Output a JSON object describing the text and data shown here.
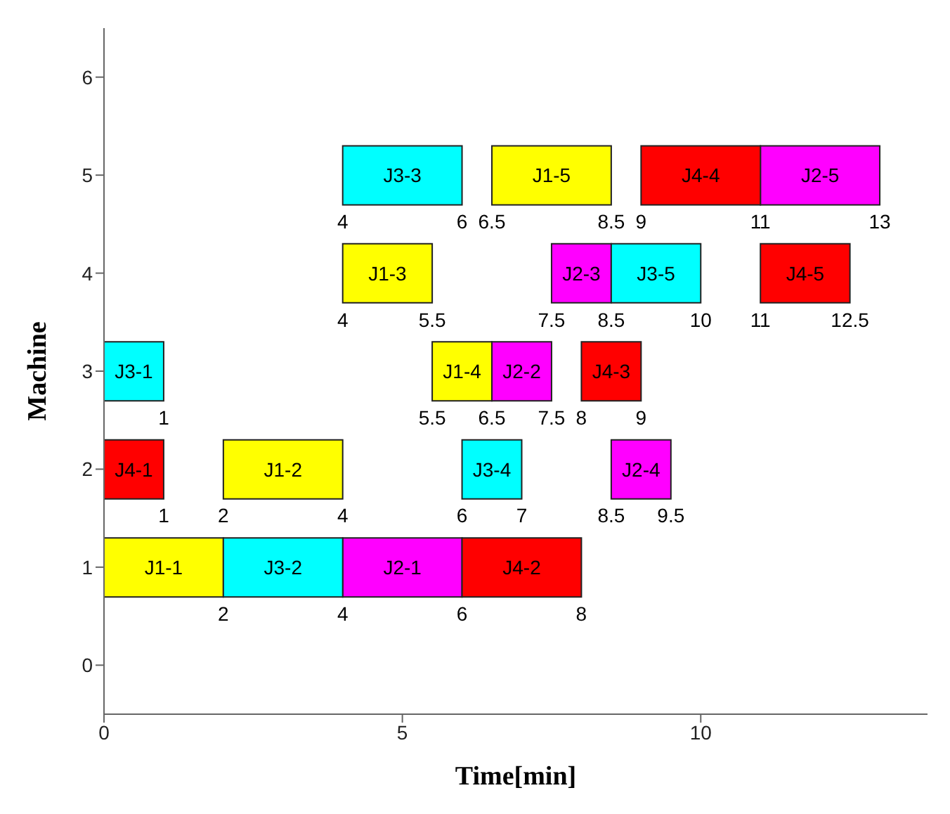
{
  "chart_data": {
    "type": "bar",
    "orientation": "horizontal",
    "xlabel": "Time[min]",
    "ylabel": "Machine",
    "categories": [
      "6",
      "5",
      "4",
      "3",
      "2",
      "1",
      "0"
    ],
    "xlim": [
      0,
      13.8
    ],
    "xticks": [
      0,
      5,
      10
    ],
    "grid": false,
    "legend": false,
    "series": [
      {
        "color": "#ffff00",
        "values": [
          null,
          2,
          1.5,
          1,
          2,
          2,
          null
        ],
        "base": [
          null,
          6.5,
          4,
          5.5,
          2,
          0,
          null
        ],
        "value_labels": [
          null,
          "J1-5",
          "J1-3",
          "J1-4",
          "J1-2",
          "J1-1",
          null
        ]
      },
      {
        "color": "#ff00ff",
        "values": [
          null,
          2,
          1,
          1,
          1,
          2,
          null
        ],
        "base": [
          null,
          11,
          7.5,
          6.5,
          8.5,
          4,
          null
        ],
        "value_labels": [
          null,
          "J2-5",
          "J2-3",
          "J2-2",
          "J2-4",
          "J2-1",
          null
        ]
      },
      {
        "color": "#00ffff",
        "values": [
          null,
          2,
          1.5,
          1,
          1,
          2,
          null
        ],
        "base": [
          null,
          4,
          8.5,
          0,
          6,
          2,
          null
        ],
        "value_labels": [
          null,
          "J3-3",
          "J3-5",
          "J3-1",
          "J3-4",
          "J3-2",
          null
        ]
      },
      {
        "color": "#ff0000",
        "values": [
          null,
          2,
          1.5,
          1,
          1,
          2,
          null
        ],
        "base": [
          null,
          9,
          11,
          8,
          0,
          6,
          null
        ],
        "value_labels": [
          null,
          "J4-4",
          "J4-5",
          "J4-3",
          "J4-1",
          "J4-2",
          null
        ]
      }
    ],
    "annotations": [
      {
        "text": "4",
        "x": 4,
        "y": "5"
      },
      {
        "text": "6",
        "x": 6,
        "y": "5"
      },
      {
        "text": "6.5",
        "x": 6.5,
        "y": "5"
      },
      {
        "text": "8.5",
        "x": 8.5,
        "y": "5"
      },
      {
        "text": "9",
        "x": 9,
        "y": "5"
      },
      {
        "text": "11",
        "x": 11,
        "y": "5"
      },
      {
        "text": "13",
        "x": 13,
        "y": "5"
      },
      {
        "text": "4",
        "x": 4,
        "y": "4"
      },
      {
        "text": "5.5",
        "x": 5.5,
        "y": "4"
      },
      {
        "text": "7.5",
        "x": 7.5,
        "y": "4"
      },
      {
        "text": "8.5",
        "x": 8.5,
        "y": "4"
      },
      {
        "text": "10",
        "x": 10,
        "y": "4"
      },
      {
        "text": "11",
        "x": 11,
        "y": "4"
      },
      {
        "text": "12.5",
        "x": 12.5,
        "y": "4"
      },
      {
        "text": "1",
        "x": 1,
        "y": "3"
      },
      {
        "text": "5.5",
        "x": 5.5,
        "y": "3"
      },
      {
        "text": "6.5",
        "x": 6.5,
        "y": "3"
      },
      {
        "text": "7.5",
        "x": 7.5,
        "y": "3"
      },
      {
        "text": "8",
        "x": 8,
        "y": "3"
      },
      {
        "text": "9",
        "x": 9,
        "y": "3"
      },
      {
        "text": "1",
        "x": 1,
        "y": "2"
      },
      {
        "text": "2",
        "x": 2,
        "y": "2"
      },
      {
        "text": "4",
        "x": 4,
        "y": "2"
      },
      {
        "text": "6",
        "x": 6,
        "y": "2"
      },
      {
        "text": "7",
        "x": 7,
        "y": "2"
      },
      {
        "text": "8.5",
        "x": 8.5,
        "y": "2"
      },
      {
        "text": "9.5",
        "x": 9.5,
        "y": "2"
      },
      {
        "text": "2",
        "x": 2,
        "y": "1"
      },
      {
        "text": "4",
        "x": 4,
        "y": "1"
      },
      {
        "text": "6",
        "x": 6,
        "y": "1"
      },
      {
        "text": "8",
        "x": 8,
        "y": "1"
      }
    ]
  }
}
